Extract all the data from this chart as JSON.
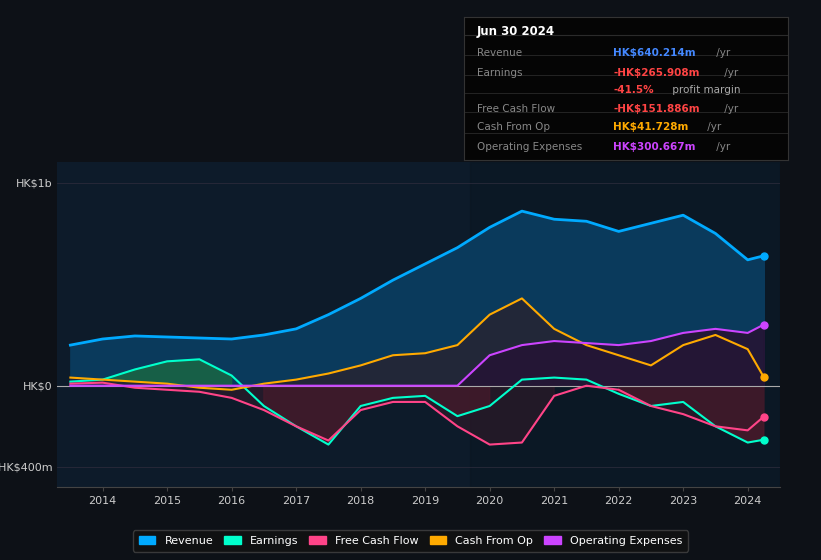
{
  "bg_color": "#0d1117",
  "plot_bg_color": "#0d1b2a",
  "years": [
    2013.5,
    2014.0,
    2014.5,
    2015.0,
    2015.5,
    2016.0,
    2016.5,
    2017.0,
    2017.5,
    2018.0,
    2018.5,
    2019.0,
    2019.5,
    2020.0,
    2020.5,
    2021.0,
    2021.5,
    2022.0,
    2022.5,
    2023.0,
    2023.5,
    2024.0,
    2024.25
  ],
  "revenue": [
    200,
    230,
    245,
    240,
    235,
    230,
    250,
    280,
    350,
    430,
    520,
    600,
    680,
    780,
    860,
    820,
    810,
    760,
    800,
    840,
    750,
    620,
    640
  ],
  "earnings": [
    20,
    30,
    80,
    120,
    130,
    50,
    -100,
    -200,
    -290,
    -100,
    -60,
    -50,
    -150,
    -100,
    30,
    40,
    30,
    -40,
    -100,
    -80,
    -200,
    -280,
    -266
  ],
  "fcf": [
    10,
    15,
    -10,
    -20,
    -30,
    -60,
    -120,
    -200,
    -270,
    -120,
    -80,
    -80,
    -200,
    -290,
    -280,
    -50,
    0,
    -20,
    -100,
    -140,
    -200,
    -220,
    -152
  ],
  "cash_op": [
    40,
    30,
    20,
    10,
    -10,
    -20,
    10,
    30,
    60,
    100,
    150,
    160,
    200,
    350,
    430,
    280,
    200,
    150,
    100,
    200,
    250,
    180,
    42
  ],
  "op_expenses": [
    0,
    0,
    0,
    0,
    0,
    0,
    0,
    0,
    0,
    0,
    0,
    0,
    0,
    150,
    200,
    220,
    210,
    200,
    220,
    260,
    280,
    260,
    301
  ],
  "revenue_color": "#00aaff",
  "earnings_color": "#00ffcc",
  "fcf_color": "#ff4488",
  "cash_op_color": "#ffaa00",
  "op_expenses_color": "#cc44ff",
  "revenue_fill": "#0a3a5c",
  "earnings_fill_pos": "#1a6644",
  "earnings_fill_neg": "#4a1a2a",
  "info_box": {
    "date": "Jun 30 2024",
    "revenue_label": "Revenue",
    "revenue_val": "HK$640.214m",
    "revenue_color": "#4488ff",
    "earnings_label": "Earnings",
    "earnings_val": "-HK$265.908m",
    "earnings_color": "#ff4444",
    "margin_val": "-41.5%",
    "margin_color": "#ff4444",
    "margin_suffix": " profit margin",
    "fcf_label": "Free Cash Flow",
    "fcf_val": "-HK$151.886m",
    "fcf_color": "#ff4444",
    "cash_op_label": "Cash From Op",
    "cash_op_val": "HK$41.728m",
    "cash_op_color": "#ffaa00",
    "op_exp_label": "Operating Expenses",
    "op_exp_val": "HK$300.667m",
    "op_exp_color": "#cc44ff"
  },
  "xlim": [
    2013.3,
    2024.5
  ],
  "ylim_plot": [
    -0.5,
    1.1
  ],
  "yticks": [
    -0.4,
    0.0,
    1.0
  ],
  "ytick_labels": [
    "-HK$400m",
    "HK$0",
    "HK$1b"
  ],
  "xticks": [
    2014,
    2015,
    2016,
    2017,
    2018,
    2019,
    2020,
    2021,
    2022,
    2023,
    2024
  ],
  "legend_entries": [
    "Revenue",
    "Earnings",
    "Free Cash Flow",
    "Cash From Op",
    "Operating Expenses"
  ],
  "legend_colors": [
    "#00aaff",
    "#00ffcc",
    "#ff4488",
    "#ffaa00",
    "#cc44ff"
  ]
}
